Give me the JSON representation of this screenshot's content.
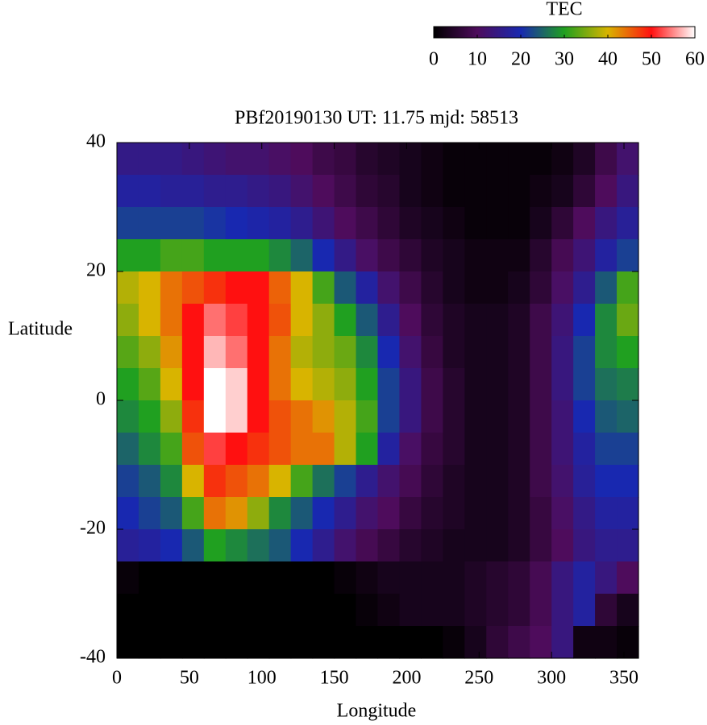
{
  "chart_data": {
    "type": "heatmap",
    "title": "PBf20190130  UT: 11.75  mjd: 58513",
    "xlabel": "Longitude",
    "ylabel": "Latitude",
    "colorbar_label": "TEC",
    "x": [
      7.5,
      22.5,
      37.5,
      52.5,
      67.5,
      82.5,
      97.5,
      112.5,
      127.5,
      142.5,
      157.5,
      172.5,
      187.5,
      202.5,
      217.5,
      232.5,
      247.5,
      262.5,
      277.5,
      292.5,
      307.5,
      322.5,
      337.5,
      352.5
    ],
    "y": [
      37.5,
      32.5,
      27.5,
      22.5,
      17.5,
      12.5,
      7.5,
      2.5,
      -2.5,
      -7.5,
      -12.5,
      -17.5,
      -22.5,
      -27.5,
      -32.5,
      -37.5
    ],
    "values": [
      [
        15,
        15,
        15,
        14,
        13,
        12,
        12,
        11,
        10,
        8,
        7,
        5,
        4,
        3,
        2,
        1,
        1,
        1,
        1,
        1,
        2,
        4,
        8,
        12
      ],
      [
        18,
        18,
        17,
        17,
        16,
        16,
        15,
        14,
        12,
        10,
        8,
        6,
        5,
        3,
        2,
        1,
        1,
        1,
        1,
        2,
        3,
        6,
        10,
        14
      ],
      [
        22,
        22,
        22,
        22,
        21,
        20,
        19,
        18,
        16,
        13,
        10,
        8,
        6,
        4,
        3,
        2,
        1,
        1,
        1,
        3,
        6,
        10,
        14,
        17
      ],
      [
        30,
        30,
        32,
        32,
        30,
        30,
        30,
        28,
        25,
        20,
        15,
        11,
        8,
        6,
        4,
        3,
        2,
        2,
        2,
        5,
        9,
        13,
        18,
        22
      ],
      [
        38,
        40,
        44,
        46,
        48,
        50,
        50,
        45,
        40,
        32,
        24,
        18,
        12,
        8,
        5,
        3,
        2,
        2,
        3,
        6,
        11,
        16,
        24,
        32
      ],
      [
        36,
        40,
        44,
        50,
        54,
        52,
        50,
        46,
        40,
        36,
        30,
        24,
        16,
        10,
        6,
        4,
        3,
        3,
        4,
        8,
        13,
        20,
        28,
        34
      ],
      [
        33,
        36,
        42,
        50,
        57,
        54,
        50,
        44,
        38,
        36,
        34,
        28,
        20,
        12,
        7,
        4,
        3,
        3,
        4,
        8,
        14,
        22,
        28,
        30
      ],
      [
        30,
        33,
        40,
        50,
        60,
        58,
        50,
        44,
        40,
        38,
        36,
        30,
        22,
        14,
        8,
        5,
        3,
        3,
        4,
        8,
        14,
        22,
        26,
        27
      ],
      [
        28,
        30,
        36,
        48,
        60,
        58,
        50,
        46,
        44,
        42,
        38,
        32,
        22,
        14,
        8,
        5,
        3,
        3,
        4,
        8,
        13,
        20,
        24,
        25
      ],
      [
        25,
        28,
        32,
        46,
        52,
        50,
        48,
        46,
        44,
        44,
        38,
        30,
        18,
        11,
        7,
        5,
        3,
        3,
        4,
        8,
        13,
        18,
        22,
        22
      ],
      [
        22,
        24,
        28,
        40,
        48,
        46,
        44,
        40,
        32,
        26,
        22,
        16,
        12,
        9,
        6,
        4,
        3,
        3,
        4,
        8,
        12,
        17,
        20,
        20
      ],
      [
        20,
        22,
        24,
        32,
        44,
        42,
        36,
        28,
        24,
        20,
        16,
        12,
        10,
        7,
        5,
        4,
        3,
        3,
        4,
        7,
        11,
        15,
        18,
        18
      ],
      [
        17,
        18,
        20,
        24,
        30,
        28,
        26,
        24,
        20,
        16,
        12,
        9,
        7,
        5,
        4,
        3,
        3,
        3,
        4,
        7,
        10,
        14,
        16,
        16
      ],
      [
        1,
        0,
        0,
        0,
        0,
        0,
        0,
        0,
        0,
        0,
        1,
        2,
        3,
        3,
        3,
        3,
        4,
        5,
        6,
        9,
        14,
        18,
        14,
        10
      ],
      [
        0,
        0,
        0,
        0,
        0,
        0,
        0,
        0,
        0,
        0,
        0,
        1,
        2,
        3,
        3,
        3,
        4,
        5,
        6,
        9,
        14,
        18,
        6,
        3
      ],
      [
        0,
        0,
        0,
        0,
        0,
        0,
        0,
        0,
        0,
        0,
        0,
        0,
        0,
        0,
        0,
        1,
        3,
        6,
        8,
        10,
        14,
        2,
        2,
        1
      ]
    ],
    "xlim": [
      0,
      360
    ],
    "xticks": [
      0,
      50,
      100,
      150,
      200,
      250,
      300,
      350
    ],
    "ylim": [
      -40,
      40
    ],
    "yticks": [
      -40,
      -20,
      0,
      20,
      40
    ],
    "zlim": [
      0,
      60
    ],
    "zticks": [
      0,
      10,
      20,
      30,
      40,
      50,
      60
    ],
    "colormap": [
      "#000000",
      "#4e0c5c",
      "#1828b0",
      "#20a020",
      "#d8b400",
      "#ff1010",
      "#ffffff"
    ]
  }
}
